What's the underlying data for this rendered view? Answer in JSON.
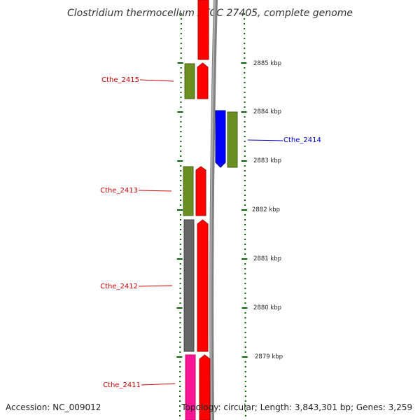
{
  "title": "Clostridium thermocellum ATCC 27405, complete genome",
  "footer": {
    "accession": "Accession: NC_009012",
    "topology": "Topology: circular; Length: 3,843,301 bp; Genes: 3,259"
  },
  "scale_labels": [
    "2885 kbp",
    "2884 kbp",
    "2883 kbp",
    "2882 kbp",
    "2881 kbp",
    "2880 kbp",
    "2879 kbp"
  ],
  "gene_labels": [
    {
      "name": "Cthe_2415",
      "strand": "forward"
    },
    {
      "name": "Cthe_2414",
      "strand": "reverse"
    },
    {
      "name": "Cthe_2413",
      "strand": "forward"
    },
    {
      "name": "Cthe_2412",
      "strand": "forward"
    },
    {
      "name": "Cthe_2411",
      "strand": "forward"
    }
  ],
  "colors": {
    "cds_forward": "#ff0000",
    "cds_reverse": "#0000ff",
    "gene_feature": "#6b8e23",
    "gene_feature_grey": "#666666",
    "gene_feature_pink": "#ff1493",
    "label_forward": "#cc0000",
    "label_reverse": "#0000cc",
    "ticks": "#006400",
    "backbone": "#808080"
  }
}
